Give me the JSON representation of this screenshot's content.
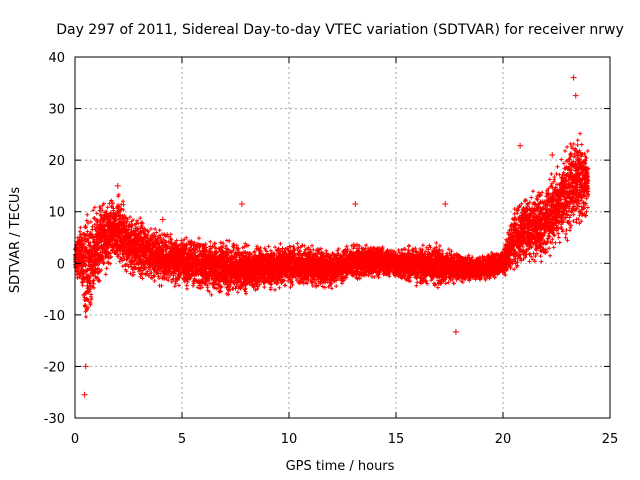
{
  "chart_data": {
    "type": "scatter",
    "title": "Day 297 of 2011, Sidereal Day-to-day VTEC variation (SDTVAR) for receiver nrwy",
    "xlabel": "GPS time / hours",
    "ylabel": "SDTVAR / TECUs",
    "xlim": [
      0,
      25
    ],
    "ylim": [
      -30,
      40
    ],
    "xticks": [
      0,
      5,
      10,
      15,
      20,
      25
    ],
    "yticks": [
      -30,
      -20,
      -10,
      0,
      10,
      20,
      30,
      40
    ],
    "grid": true,
    "marker": "+",
    "color": "#ff0000",
    "series": [
      {
        "name": "SDTVAR",
        "envelope_x": [
          0.0,
          0.3,
          0.5,
          0.8,
          1.2,
          1.6,
          2.0,
          2.5,
          3.0,
          4.0,
          5.0,
          6.0,
          7.0,
          8.0,
          9.0,
          10.0,
          11.0,
          12.0,
          13.0,
          14.0,
          15.0,
          16.0,
          17.0,
          18.0,
          19.0,
          20.0,
          20.5,
          21.0,
          22.0,
          22.5,
          23.0,
          23.5,
          24.0
        ],
        "envelope_upper": [
          4,
          9,
          11,
          12,
          13,
          14,
          14,
          10,
          9,
          7,
          6,
          5,
          5,
          4,
          4,
          4,
          4,
          3,
          4,
          4,
          3,
          4,
          4,
          2,
          2,
          3,
          12,
          14,
          16,
          20,
          24,
          28,
          22
        ],
        "envelope_lower": [
          -2,
          -6,
          -14,
          -10,
          -4,
          -2,
          -1,
          -3,
          -4,
          -5,
          -5,
          -6,
          -7,
          -6,
          -6,
          -5,
          -5,
          -5,
          -4,
          -3,
          -3,
          -5,
          -5,
          -4,
          -4,
          -3,
          -2,
          -1,
          0,
          2,
          4,
          6,
          9
        ],
        "outliers": [
          {
            "x": 0.45,
            "y": -25.5
          },
          {
            "x": 0.5,
            "y": -20
          },
          {
            "x": 2.0,
            "y": 15
          },
          {
            "x": 4.1,
            "y": 8.5
          },
          {
            "x": 7.8,
            "y": 11.5
          },
          {
            "x": 13.1,
            "y": 11.5
          },
          {
            "x": 17.3,
            "y": 11.5
          },
          {
            "x": 17.8,
            "y": -13.3
          },
          {
            "x": 20.8,
            "y": 22.8
          },
          {
            "x": 22.3,
            "y": 21
          },
          {
            "x": 23.3,
            "y": 36
          },
          {
            "x": 23.4,
            "y": 32.5
          }
        ]
      }
    ]
  }
}
